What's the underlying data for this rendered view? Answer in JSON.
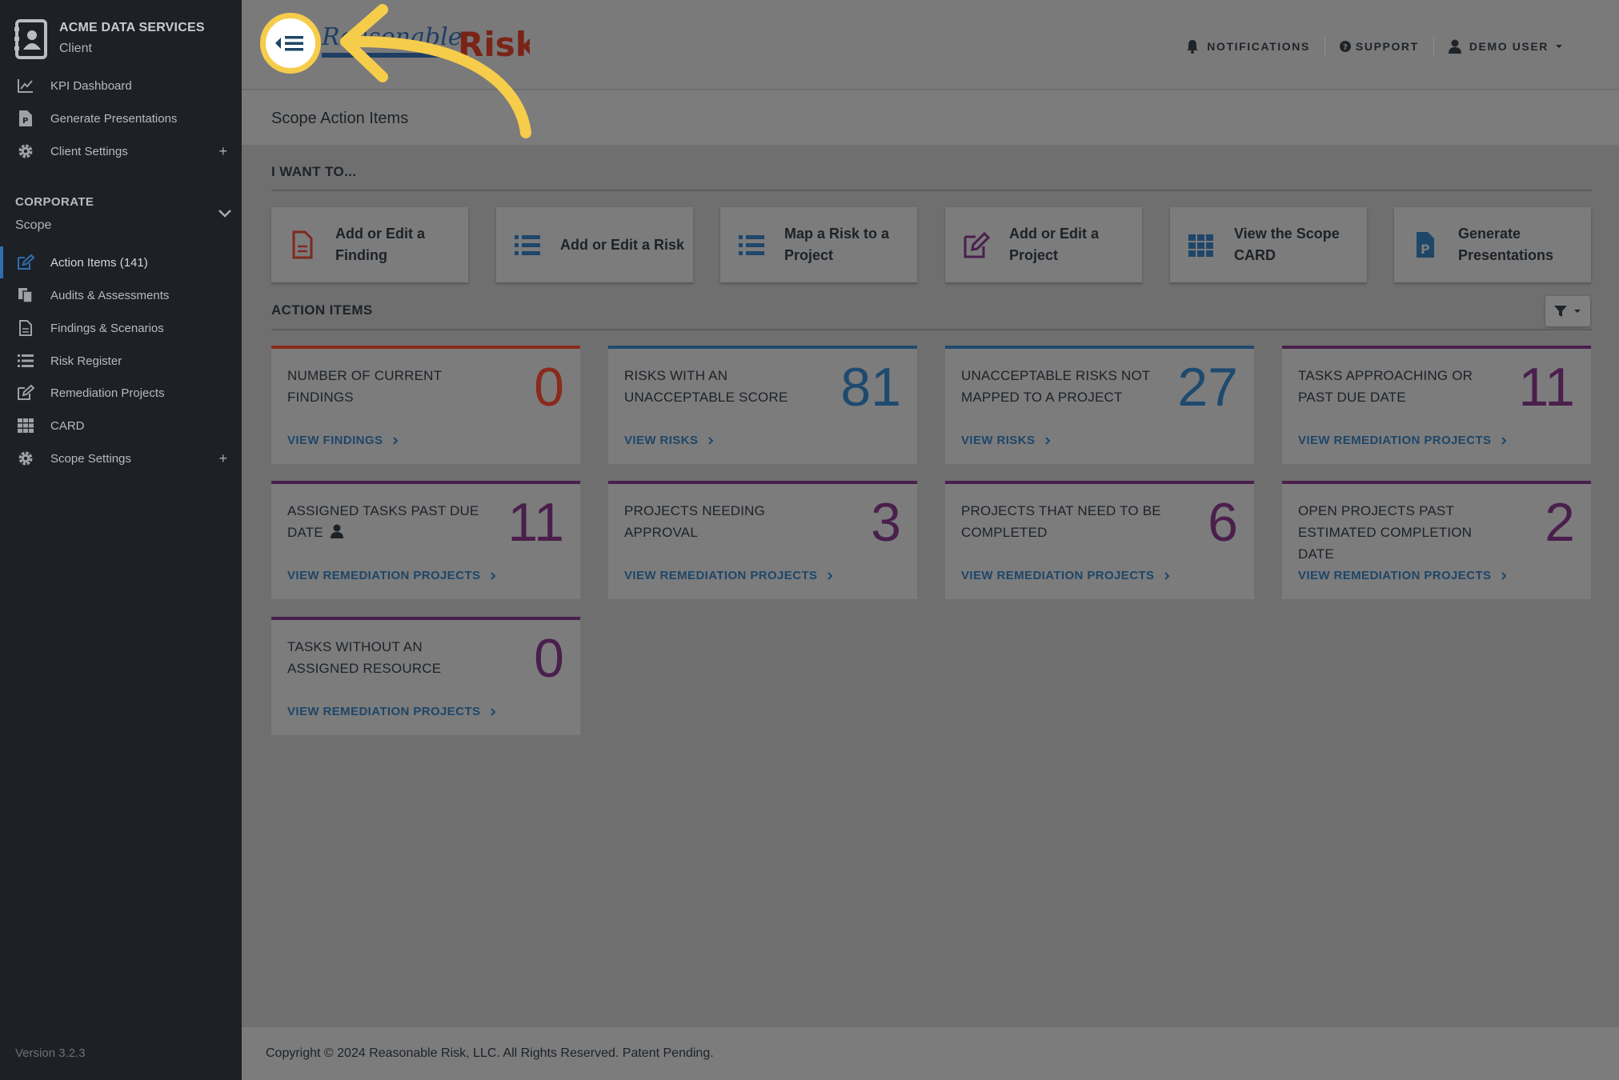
{
  "sidebar": {
    "client_name": "ACME DATA SERVICES",
    "client_role": "Client",
    "top_items": [
      {
        "label": "KPI Dashboard",
        "icon": "line-chart-icon"
      },
      {
        "label": "Generate Presentations",
        "icon": "presentation-file-icon"
      },
      {
        "label": "Client Settings",
        "icon": "gear-icon",
        "expand": "+"
      }
    ],
    "section_title": "CORPORATE",
    "section_subtitle": "Scope",
    "scope_items": [
      {
        "label": "Action Items (141)",
        "icon": "edit-icon",
        "active": true
      },
      {
        "label": "Audits & Assessments",
        "icon": "copy-icon"
      },
      {
        "label": "Findings & Scenarios",
        "icon": "file-icon"
      },
      {
        "label": "Risk Register",
        "icon": "list-icon"
      },
      {
        "label": "Remediation Projects",
        "icon": "edit-icon"
      },
      {
        "label": "CARD",
        "icon": "grid-icon"
      },
      {
        "label": "Scope Settings",
        "icon": "gear-icon",
        "expand": "+"
      }
    ],
    "version": "Version 3.2.3"
  },
  "header": {
    "logo_text_left": "Reasonable",
    "logo_text_right": "Risk",
    "notifications": "NOTIFICATIONS",
    "support": "SUPPORT",
    "user": "DEMO USER"
  },
  "page": {
    "title": "Scope Action Items",
    "want_title": "I WANT TO...",
    "quick_actions": [
      {
        "label": "Add or Edit a Finding",
        "icon": "file-icon"
      },
      {
        "label": "Add or Edit a Risk",
        "icon": "list-icon"
      },
      {
        "label": "Map a Risk to a Project",
        "icon": "list-icon"
      },
      {
        "label": "Add or Edit a Project",
        "icon": "edit-icon"
      },
      {
        "label": "View the Scope CARD",
        "icon": "grid-icon"
      },
      {
        "label": "Generate Presentations",
        "icon": "presentation-file-icon"
      }
    ],
    "action_items_title": "ACTION ITEMS",
    "cards": [
      {
        "text": "NUMBER OF CURRENT FINDINGS",
        "value": "0",
        "link": "VIEW FINDINGS",
        "color": "#8a2a1c"
      },
      {
        "text": "RISKS WITH AN UNACCEPTABLE SCORE",
        "value": "81",
        "link": "VIEW RISKS",
        "color": "#1e4a6e"
      },
      {
        "text": "UNACCEPTABLE RISKS NOT MAPPED TO A PROJECT",
        "value": "27",
        "link": "VIEW RISKS",
        "color": "#1e4a6e"
      },
      {
        "text": "TASKS APPROACHING OR PAST DUE DATE",
        "value": "11",
        "link": "VIEW REMEDIATION PROJECTS",
        "color": "#4a1f4c"
      },
      {
        "text": "ASSIGNED TASKS PAST DUE DATE",
        "value": "11",
        "link": "VIEW REMEDIATION PROJECTS",
        "color": "#4a1f4c",
        "user_icon": true
      },
      {
        "text": "PROJECTS NEEDING APPROVAL",
        "value": "3",
        "link": "VIEW REMEDIATION PROJECTS",
        "color": "#4a1f4c"
      },
      {
        "text": "PROJECTS THAT NEED TO BE COMPLETED",
        "value": "6",
        "link": "VIEW REMEDIATION PROJECTS",
        "color": "#4a1f4c"
      },
      {
        "text": "OPEN PROJECTS PAST ESTIMATED COMPLETION DATE",
        "value": "2",
        "link": "VIEW REMEDIATION PROJECTS",
        "color": "#4a1f4c"
      },
      {
        "text": "TASKS WITHOUT AN ASSIGNED RESOURCE",
        "value": "0",
        "link": "VIEW REMEDIATION PROJECTS",
        "color": "#4a1f4c"
      }
    ]
  },
  "footer": {
    "copyright": "Copyright © 2024 Reasonable Risk, LLC. All Rights Reserved. Patent Pending."
  },
  "colors": {
    "sidebar_bg": "#1d2126",
    "overlay_gray": "#7c7c7d",
    "highlight_yellow": "#f6cc4b",
    "link_blue": "#1e4668"
  }
}
